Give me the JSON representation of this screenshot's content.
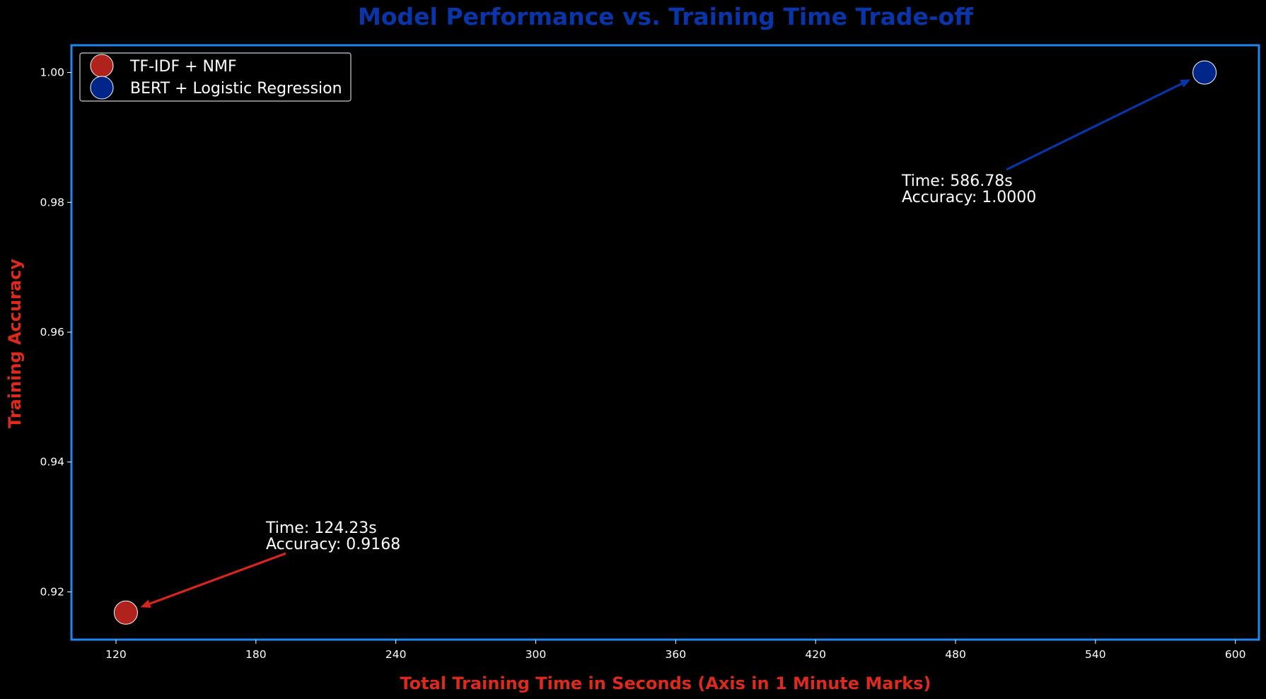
{
  "chart_data": {
    "type": "scatter",
    "title": "Model Performance vs. Training Time Trade-off",
    "xlabel": "Total Training Time in Seconds (Axis in 1 Minute Marks)",
    "ylabel": "Training Accuracy",
    "xlim": [
      100.9,
      610.1
    ],
    "ylim": [
      0.91264,
      1.0042
    ],
    "xticks": [
      120,
      180,
      240,
      300,
      360,
      420,
      480,
      540,
      600
    ],
    "xtick_labels": [
      "120",
      "180",
      "240",
      "300",
      "360",
      "420",
      "480",
      "540",
      "600"
    ],
    "yticks": [
      0.92,
      0.94,
      0.96,
      0.98,
      1.0
    ],
    "ytick_labels": [
      "0.92",
      "0.94",
      "0.96",
      "0.98",
      "1.00"
    ],
    "grid": false,
    "legend_position": "upper-left",
    "series": [
      {
        "name": "TF-IDF + NMF",
        "color": "#b0221c",
        "x": [
          124.23
        ],
        "y": [
          0.9168
        ],
        "annotation": [
          "Time: 124.23s",
          "Accuracy: 0.9168"
        ]
      },
      {
        "name": "BERT + Logistic Regression",
        "color": "#00268a",
        "x": [
          586.78
        ],
        "y": [
          1.0
        ],
        "annotation": [
          "Time: 586.78s",
          "Accuracy: 1.0000"
        ]
      }
    ],
    "colors": {
      "background": "#000000",
      "frame": "#1e88f0",
      "title": "#0a35a8",
      "axis_label": "#dc2a1e",
      "tick_text": "#ffffff",
      "arrow_series_1": "#d8261e",
      "arrow_series_2": "#0a35a8",
      "legend_border": "#cccccc"
    }
  }
}
